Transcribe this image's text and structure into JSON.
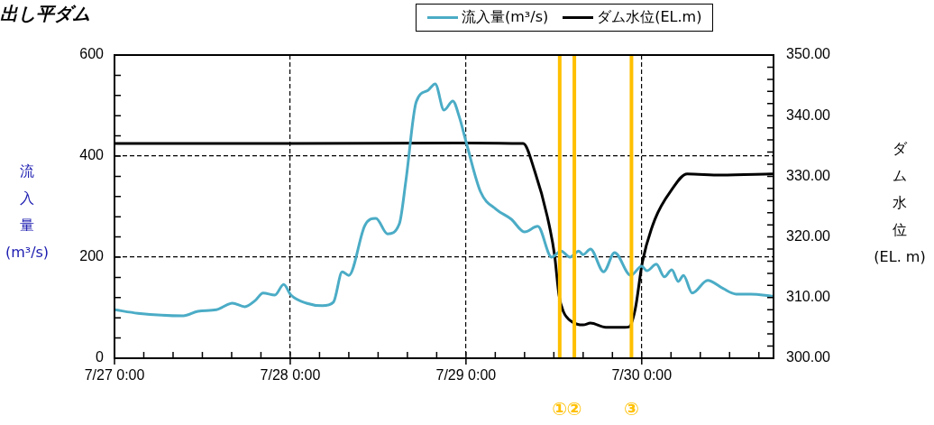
{
  "chart_data": {
    "type": "line",
    "title": "出し平ダム",
    "ylabel": "流入量(m³/s)",
    "y2label": "ダム水位(EL. m)",
    "legend": "top right",
    "grid": true,
    "marker": "none",
    "xlim": [
      "--07-27T00:00",
      "--07-30T18:00"
    ],
    "xticks": [
      {
        "value": "--07-27T00:00",
        "label": "7/27 0:00"
      },
      {
        "value": "--07-27T04:00",
        "label": null
      },
      {
        "value": "--07-27T08:00",
        "label": null
      },
      {
        "value": "--07-27T12:00",
        "label": null
      },
      {
        "value": "--07-27T16:00",
        "label": null
      },
      {
        "value": "--07-27T20:00",
        "label": null
      },
      {
        "value": "--07-28T00:00",
        "label": "7/28 0:00"
      },
      {
        "value": "--07-28T04:00",
        "label": null
      },
      {
        "value": "--07-28T08:00",
        "label": null
      },
      {
        "value": "--07-28T12:00",
        "label": null
      },
      {
        "value": "--07-28T16:00",
        "label": null
      },
      {
        "value": "--07-28T20:00",
        "label": null
      },
      {
        "value": "--07-29T00:00",
        "label": "7/29 0:00"
      },
      {
        "value": "--07-29T04:00",
        "label": null
      },
      {
        "value": "--07-29T08:00",
        "label": null
      },
      {
        "value": "--07-29T12:00",
        "label": null
      },
      {
        "value": "--07-29T16:00",
        "label": null
      },
      {
        "value": "--07-29T20:00",
        "label": null
      },
      {
        "value": "--07-30T00:00",
        "label": "7/30 0:00"
      },
      {
        "value": "--07-30T04:00",
        "label": null
      },
      {
        "value": "--07-30T08:00",
        "label": null
      },
      {
        "value": "--07-30T12:00",
        "label": null
      },
      {
        "value": "--07-30T16:00",
        "label": null
      }
    ],
    "ylim": [
      0,
      600
    ],
    "yticks": [
      0,
      {
        "value": 40,
        "label": null
      },
      {
        "value": 80,
        "label": null
      },
      {
        "value": 120,
        "label": null
      },
      {
        "value": 160,
        "label": null
      },
      200,
      {
        "value": 240,
        "label": null
      },
      {
        "value": 280,
        "label": null
      },
      {
        "value": 320,
        "label": null
      },
      {
        "value": 360,
        "label": null
      },
      400,
      {
        "value": 440,
        "label": null
      },
      {
        "value": 480,
        "label": null
      },
      {
        "value": 520,
        "label": null
      },
      {
        "value": 560,
        "label": null
      },
      600
    ],
    "y2lim": [
      300,
      350
    ],
    "y2ticks": [
      {
        "value": 300,
        "label": "300.00"
      },
      {
        "value": 302,
        "label": null
      },
      {
        "value": 304,
        "label": null
      },
      {
        "value": 306,
        "label": null
      },
      {
        "value": 308,
        "label": null
      },
      {
        "value": 310,
        "label": "310.00"
      },
      {
        "value": 312,
        "label": null
      },
      {
        "value": 314,
        "label": null
      },
      {
        "value": 316,
        "label": null
      },
      {
        "value": 318,
        "label": null
      },
      {
        "value": 320,
        "label": "320.00"
      },
      {
        "value": 322,
        "label": null
      },
      {
        "value": 324,
        "label": null
      },
      {
        "value": 326,
        "label": null
      },
      {
        "value": 328,
        "label": null
      },
      {
        "value": 330,
        "label": "330.00"
      },
      {
        "value": 332,
        "label": null
      },
      {
        "value": 334,
        "label": null
      },
      {
        "value": 336,
        "label": null
      },
      {
        "value": 338,
        "label": null
      },
      {
        "value": 340,
        "label": "340.00"
      },
      {
        "value": 342,
        "label": null
      },
      {
        "value": 344,
        "label": null
      },
      {
        "value": 346,
        "label": null
      },
      {
        "value": 348,
        "label": null
      },
      {
        "value": 350,
        "label": "350.00"
      }
    ],
    "series": [
      {
        "name": "流入量(m³/s)",
        "color": "#4bacc6",
        "x": [
          "--07-27T00:00",
          "--07-27T03:12",
          "--07-27T09:24",
          "--07-27T11:24",
          "--07-27T13:54",
          "--07-27T16:06",
          "--07-27T17:48",
          "--07-27T19:12",
          "--07-27T20:18",
          "--07-27T21:54",
          "--07-27T23:06",
          "--07-28T00:06",
          "--07-28T02:12",
          "--07-28T04:24",
          "--07-28T05:54",
          "--07-28T07:06",
          "--07-28T08:00",
          "--07-28T10:12",
          "--07-28T11:42",
          "--07-28T13:18",
          "--07-28T14:54",
          "--07-28T15:48",
          "--07-28T17:12",
          "--07-28T18:48",
          "--07-28T19:48",
          "--07-28T21:00",
          "--07-28T22:12",
          "--07-28T23:06",
          "--07-29T00:00",
          "--07-29T02:00",
          "--07-29T04:06",
          "--07-29T06:12",
          "--07-29T08:00",
          "--07-29T09:48",
          "--07-29T11:42",
          "--07-29T13:00",
          "--07-29T14:12",
          "--07-29T15:24",
          "--07-29T16:00",
          "--07-29T17:00",
          "--07-29T18:48",
          "--07-29T20:18",
          "--07-29T22:30",
          "--07-30T00:00",
          "--07-30T00:42",
          "--07-30T02:00",
          "--07-30T03:06",
          "--07-30T04:06",
          "--07-30T05:00",
          "--07-30T05:42",
          "--07-30T06:54",
          "--07-30T09:00",
          "--07-30T11:06",
          "--07-30T12:54",
          "--07-30T14:54",
          "--07-30T17:48"
        ],
        "values": [
          96,
          89,
          84,
          93,
          96,
          109,
          102,
          114,
          129,
          125,
          146,
          125,
          109,
          104,
          111,
          171,
          164,
          263,
          277,
          246,
          266,
          352,
          507,
          530,
          543,
          491,
          509,
          477,
          429,
          329,
          295,
          275,
          250,
          261,
          200,
          212,
          200,
          212,
          205,
          216,
          171,
          209,
          164,
          182,
          173,
          186,
          161,
          175,
          152,
          164,
          129,
          154,
          138,
          127,
          127,
          123
        ]
      },
      {
        "name": "ダム水位(EL.m)",
        "color": "#000000",
        "axis": "y2",
        "x": [
          "--07-27T00:00",
          "--07-28T00:00",
          "--07-29T00:00",
          "--07-29T07:48",
          "--07-29T09:24",
          "--07-29T11:06",
          "--07-29T12:06",
          "--07-29T12:42",
          "--07-29T13:18",
          "--07-29T14:30",
          "--07-29T16:00",
          "--07-29T17:00",
          "--07-29T19:06",
          "--07-29T21:42",
          "--07-29T22:18",
          "--07-29T23:06",
          "--07-30T00:06",
          "--07-30T01:48",
          "--07-30T04:06",
          "--07-30T06:12",
          "--07-30T10:48",
          "--07-30T17:48"
        ],
        "values": [
          335.4,
          335.4,
          335.5,
          335.4,
          330.8,
          323.4,
          317.0,
          310.4,
          307.7,
          306.0,
          305.5,
          305.8,
          305.1,
          305.1,
          305.2,
          308.0,
          315.9,
          322.9,
          327.8,
          330.4,
          330.2,
          330.4
        ]
      }
    ],
    "ref_lines": [
      {
        "axis": "x",
        "value": "--07-29T12:48",
        "label": "①",
        "color": "#ffc000"
      },
      {
        "axis": "x",
        "value": "--07-29T14:48",
        "label": "②",
        "color": "#ffc000"
      },
      {
        "axis": "x",
        "value": "--07-29T22:36",
        "label": "③",
        "color": "#ffc000"
      }
    ]
  }
}
